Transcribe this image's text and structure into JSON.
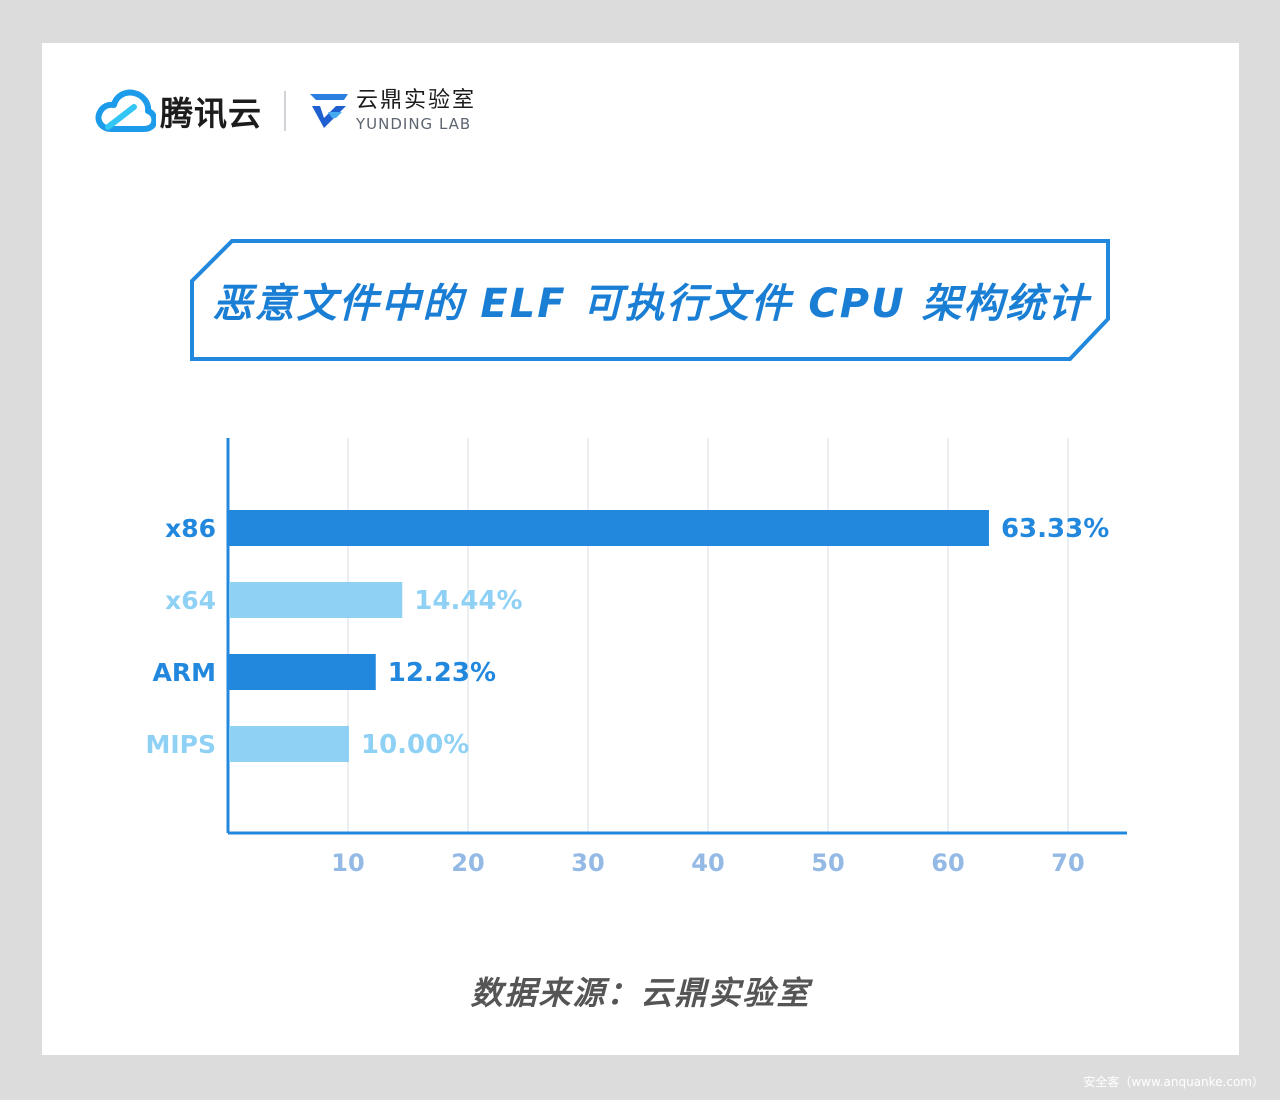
{
  "header": {
    "brand_name": "腾讯云",
    "lab_name_cn": "云鼎实验室",
    "lab_name_en": "YUNDING LAB",
    "brand_icon": "cloud-icon",
    "lab_icon": "yunding-g-icon"
  },
  "colors": {
    "accent": "#2188dd",
    "light": "#8fd1f5",
    "tick": "#93b9e4"
  },
  "chart_data": {
    "type": "bar",
    "orientation": "horizontal",
    "title": "恶意文件中的 ELF 可执行文件 CPU 架构统计",
    "categories": [
      "x86",
      "x64",
      "ARM",
      "MIPS"
    ],
    "values": [
      63.33,
      14.44,
      12.23,
      10.0
    ],
    "value_labels": [
      "63.33%",
      "14.44%",
      "12.23%",
      "10.00%"
    ],
    "bar_colors": [
      "#2188dd",
      "#8fd1f5",
      "#2188dd",
      "#8fd1f5"
    ],
    "x_ticks": [
      "10",
      "20",
      "30",
      "40",
      "50",
      "60",
      "70"
    ],
    "xlim": [
      0,
      75
    ],
    "grid": true,
    "legend": "none"
  },
  "footer": {
    "source": "数据来源：云鼎实验室"
  },
  "watermark": "安全客（www.anquanke.com）"
}
